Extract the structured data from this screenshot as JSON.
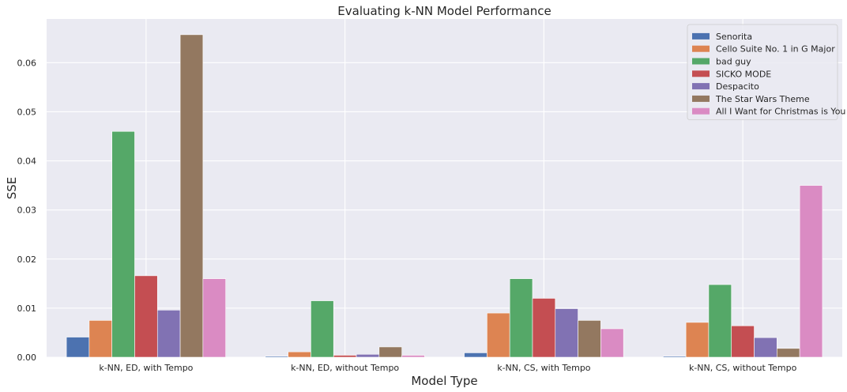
{
  "chart_data": {
    "type": "bar",
    "title": "Evaluating k-NN Model Performance",
    "xlabel": "Model Type",
    "ylabel": "SSE",
    "categories": [
      "k-NN, ED, with Tempo",
      "k-NN, ED, without Tempo",
      "k-NN, CS, with Tempo",
      "k-NN, CS, without Tempo"
    ],
    "series": [
      {
        "name": "Senorita",
        "color": "#4c72b0",
        "values": [
          0.0041,
          0.0002,
          0.0009,
          0.0002
        ]
      },
      {
        "name": "Cello Suite No. 1 in G Major",
        "color": "#dd8452",
        "values": [
          0.0075,
          0.0011,
          0.009,
          0.0071
        ]
      },
      {
        "name": "bad guy",
        "color": "#55a868",
        "values": [
          0.046,
          0.0115,
          0.016,
          0.0148
        ]
      },
      {
        "name": "SICKO MODE",
        "color": "#c44e52",
        "values": [
          0.0166,
          0.0004,
          0.012,
          0.0064
        ]
      },
      {
        "name": "Despacito",
        "color": "#8172b3",
        "values": [
          0.0096,
          0.0006,
          0.0099,
          0.004
        ]
      },
      {
        "name": "The Star Wars Theme",
        "color": "#937860",
        "values": [
          0.0657,
          0.0021,
          0.0075,
          0.0018
        ]
      },
      {
        "name": "All I Want for Christmas is You",
        "color": "#da8bc3",
        "values": [
          0.016,
          0.0004,
          0.0058,
          0.035
        ]
      }
    ],
    "yticks": [
      "0.00",
      "0.01",
      "0.02",
      "0.03",
      "0.04",
      "0.05",
      "0.06"
    ],
    "ylim": [
      0,
      0.0689
    ],
    "grid": true,
    "legend_position": "top-right"
  }
}
